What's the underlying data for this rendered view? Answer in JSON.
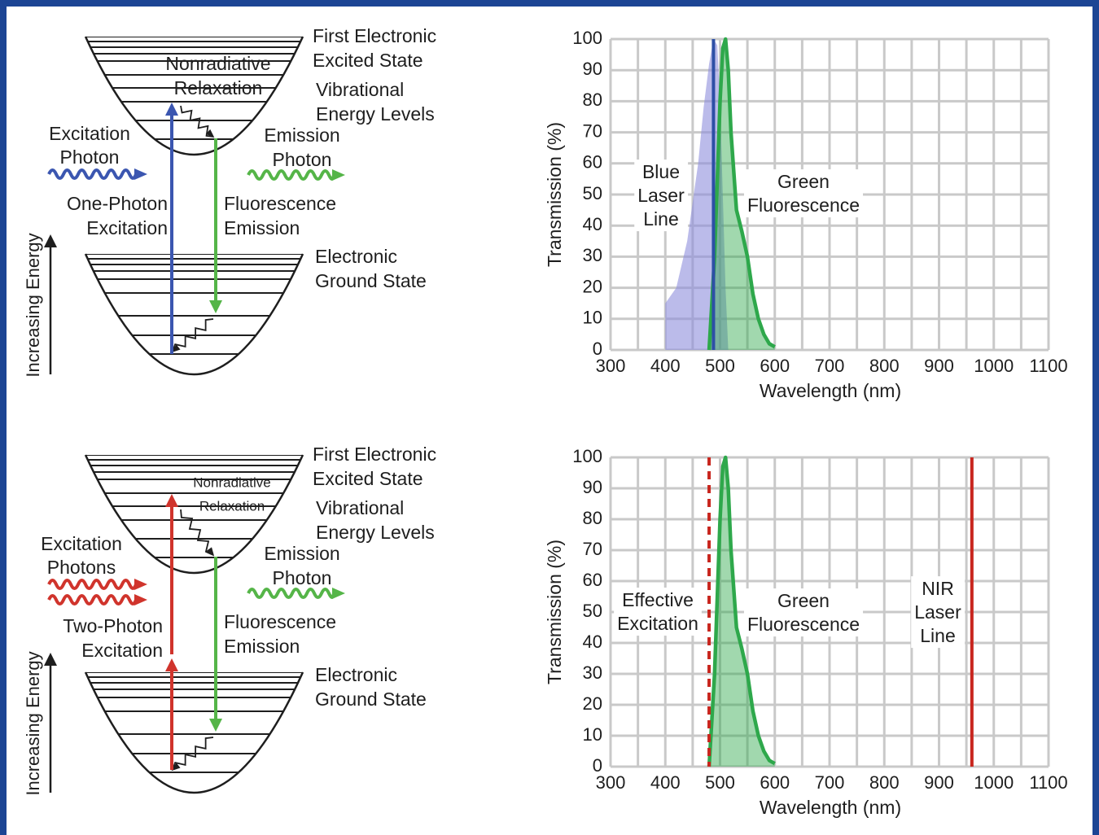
{
  "diagrams": [
    {
      "excited_state": [
        "First Electronic",
        "Excited State"
      ],
      "relaxation": [
        "Nonradiative",
        "Relaxation"
      ],
      "vibrational": [
        "Vibrational",
        "Energy Levels"
      ],
      "excitation_photon": [
        "Excitation",
        "Photon"
      ],
      "emission_photon": [
        "Emission",
        "Photon"
      ],
      "excitation": [
        "One-Photon",
        "Excitation"
      ],
      "fluorescence": [
        "Fluorescence",
        "Emission"
      ],
      "ground_state": [
        "Electronic",
        "Ground State"
      ],
      "energy_axis": "Increasing Energy"
    },
    {
      "excited_state": [
        "First Electronic",
        "Excited State"
      ],
      "relaxation": [
        "Nonradiative",
        "Relaxation"
      ],
      "vibrational": [
        "Vibrational",
        "Energy Levels"
      ],
      "excitation_photon": [
        "Excitation",
        "Photons"
      ],
      "emission_photon": [
        "Emission",
        "Photon"
      ],
      "excitation": [
        "Two-Photon",
        "Excitation"
      ],
      "fluorescence": [
        "Fluorescence",
        "Emission"
      ],
      "ground_state": [
        "Electronic",
        "Ground State"
      ],
      "energy_axis": "Increasing Energy"
    }
  ],
  "chart_data": [
    {
      "type": "area",
      "x_label": "Wavelength (nm)",
      "y_label": "Transmission (%)",
      "xlim": [
        300,
        1100
      ],
      "xticks": [
        300,
        400,
        500,
        600,
        700,
        800,
        900,
        1000,
        1100
      ],
      "xminorticks": [
        350,
        450,
        550,
        650,
        750,
        850,
        950,
        1050
      ],
      "ylim": [
        0,
        100
      ],
      "yticks": [
        0,
        10,
        20,
        30,
        40,
        50,
        60,
        70,
        80,
        90,
        100
      ],
      "grid": true,
      "series": [
        {
          "color": "#8e8edc",
          "stroke": false,
          "x": [
            400,
            420,
            440,
            460,
            470,
            480,
            488,
            495,
            500,
            505,
            510,
            515
          ],
          "values": [
            15,
            20,
            35,
            60,
            78,
            92,
            100,
            98,
            80,
            50,
            20,
            0
          ]
        },
        {
          "color": "#2ea84b",
          "stroke": true,
          "x": [
            480,
            490,
            500,
            505,
            510,
            515,
            520,
            530,
            540,
            550,
            560,
            570,
            580,
            590,
            600
          ],
          "values": [
            0,
            30,
            80,
            97,
            100,
            90,
            70,
            45,
            38,
            30,
            18,
            10,
            5,
            2,
            1
          ]
        }
      ],
      "vlines": [
        {
          "x": 488,
          "color": "#2d4fa6",
          "dashed": false
        }
      ],
      "annotations": [
        [
          "Blue",
          "Laser",
          "Line"
        ],
        [
          "Green",
          "Fluorescence"
        ]
      ]
    },
    {
      "type": "area",
      "x_label": "Wavelength (nm)",
      "y_label": "Transmission (%)",
      "xlim": [
        300,
        1100
      ],
      "xticks": [
        300,
        400,
        500,
        600,
        700,
        800,
        900,
        1000,
        1100
      ],
      "xminorticks": [
        350,
        450,
        550,
        650,
        750,
        850,
        950,
        1050
      ],
      "ylim": [
        0,
        100
      ],
      "yticks": [
        0,
        10,
        20,
        30,
        40,
        50,
        60,
        70,
        80,
        90,
        100
      ],
      "grid": true,
      "series": [
        {
          "color": "#2ea84b",
          "stroke": true,
          "x": [
            480,
            490,
            500,
            505,
            510,
            515,
            520,
            530,
            540,
            550,
            560,
            570,
            580,
            590,
            600
          ],
          "values": [
            0,
            30,
            80,
            97,
            100,
            90,
            70,
            45,
            38,
            30,
            18,
            10,
            5,
            2,
            1
          ]
        }
      ],
      "vlines": [
        {
          "x": 480,
          "color": "#c8261e",
          "dashed": true
        },
        {
          "x": 960,
          "color": "#c8261e",
          "dashed": false
        }
      ],
      "annotations": [
        [
          "Effective",
          "Excitation"
        ],
        [
          "Green",
          "Fluorescence"
        ],
        [
          "NIR",
          "Laser",
          "Line"
        ]
      ]
    }
  ]
}
